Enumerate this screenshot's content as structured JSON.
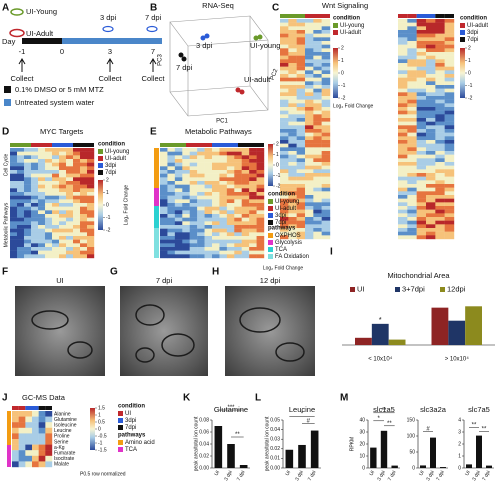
{
  "panel_labels": [
    "A",
    "B",
    "C",
    "D",
    "E",
    "F",
    "G",
    "H",
    "I",
    "J",
    "K",
    "L",
    "M"
  ],
  "a": {
    "groups": [
      "UI-Young",
      "UI-Adult",
      "3 dpi",
      "7 dpi"
    ],
    "day_label": "Day",
    "days": [
      -1,
      0,
      3,
      7
    ],
    "collect": [
      "Collect",
      "Collect",
      "Collect"
    ],
    "legend": [
      "0.1% DMSO or 5 mM MTZ",
      "Untreated system water"
    ]
  },
  "b": {
    "title": "RNA-Seq",
    "point_labels": [
      "3 dpi",
      "UI-young",
      "7 dpi",
      "UI-adult"
    ],
    "axes": [
      "PC1",
      "PC2",
      "PC3"
    ]
  },
  "c": {
    "title": "Wnt Signaling",
    "legend_title": "condition",
    "legend_1": [
      "UI-young",
      "UI-adult"
    ],
    "legend_2": [
      "UI-adult",
      "3dpi",
      "7dpi"
    ],
    "colorbar_ticks": [
      2,
      1,
      0,
      -1,
      -2
    ],
    "colorbar_label": "Log₂ Fold Change"
  },
  "d": {
    "title": "MYC Targets",
    "row_groups": [
      "Cell Cycle",
      "Metabolic Pathways"
    ],
    "legend_title": "condition",
    "conditions": [
      "UI-young",
      "UI-adult",
      "3dpi",
      "7dpi"
    ],
    "colorbar_ticks": [
      2,
      1,
      0,
      -1,
      -2
    ],
    "colorbar_label": "Log₂ Fold Change"
  },
  "e": {
    "title": "Metabolic Pathways",
    "legend_title": "condition",
    "conditions": [
      "UI-young",
      "UI-adult",
      "3dpi",
      "7dpi"
    ],
    "pathways_title": "pathways",
    "pathways": [
      "OXPHOS",
      "Glycolysis",
      "TCA",
      "FA Oxidation"
    ],
    "colorbar_ticks": [
      2,
      1,
      0,
      -1,
      -2
    ],
    "colorbar_label": "Log₂ Fold Change"
  },
  "fgh": {
    "titles": [
      "UI",
      "7 dpi",
      "12 dpi"
    ]
  },
  "j": {
    "title": "GC-MS Data",
    "rows": [
      "Alanine",
      "Glutamine",
      "Isoleucine",
      "Leucine",
      "Proline",
      "Serine",
      "a-Kg",
      "Fumarate",
      "Isocitrate",
      "Malate"
    ],
    "colorbar_ticks": [
      1.5,
      1,
      0.5,
      0,
      -0.5,
      -1,
      -1.5
    ],
    "note": "P0.5 row normalized",
    "legend_title": "condition",
    "conditions": [
      "UI",
      "3dpi",
      "7dpi"
    ],
    "pathways_title": "pathways",
    "pathways": [
      "Amino acid",
      "TCA"
    ]
  },
  "chart_data": [
    {
      "type": "bar",
      "title": "Mitochondrial Area",
      "categories": [
        "< 10x10⁴",
        "> 10x10⁴"
      ],
      "series": [
        {
          "name": "UI",
          "color": "#8e2424",
          "values": [
            16,
            83
          ]
        },
        {
          "name": "3+7dpi",
          "color": "#1f3566",
          "values": [
            47,
            54
          ]
        },
        {
          "name": "12dpi",
          "color": "#8c8a1e",
          "values": [
            12,
            86
          ]
        }
      ],
      "ylim": [
        0,
        100
      ],
      "annotations": [
        "*"
      ]
    },
    {
      "type": "bar",
      "title": "Glutamine",
      "y_label": "peak area/total ion count",
      "categories": [
        "UI",
        "3 dpi",
        "7 dpi"
      ],
      "values": [
        0.07,
        0.04,
        0.005
      ],
      "color": "#111111",
      "ylim": [
        0,
        0.08
      ],
      "yticks": [
        {
          "value": 0,
          "label": "0.00"
        },
        {
          "value": 0.02,
          "label": "0.02"
        },
        {
          "value": 0.04,
          "label": "0.04"
        },
        {
          "value": 0.06,
          "label": "0.06"
        },
        {
          "value": 0.08,
          "label": "0.08"
        }
      ],
      "annotations": [
        "***",
        "**"
      ]
    },
    {
      "type": "bar",
      "title": "Leucine",
      "y_label": "peak area/total ion count",
      "categories": [
        "UI",
        "3 dpi",
        "7 dpi"
      ],
      "values": [
        0.019,
        0.024,
        0.039
      ],
      "color": "#111111",
      "ylim": [
        0,
        0.05
      ],
      "yticks": [
        {
          "value": 0,
          "label": "0.00"
        },
        {
          "value": 0.01,
          "label": "0.01"
        },
        {
          "value": 0.02,
          "label": "0.02"
        },
        {
          "value": 0.03,
          "label": "0.03"
        },
        {
          "value": 0.04,
          "label": "0.04"
        },
        {
          "value": 0.05,
          "label": "0.05"
        }
      ],
      "annotations": [
        "#",
        "*"
      ]
    },
    {
      "type": "bar",
      "title": "slc1a5",
      "y_label": "RPKM",
      "categories": [
        "UI",
        "3 dpi",
        "7 dpi"
      ],
      "values": [
        17,
        31,
        2
      ],
      "color": "#111111",
      "ylim": [
        0,
        40
      ],
      "yticks": [
        0,
        10,
        20,
        30,
        40
      ],
      "annotations": [
        "*",
        "**",
        "**"
      ]
    },
    {
      "type": "bar",
      "title": "slc3a2a",
      "categories": [
        "UI",
        "3 dpi",
        "7 dpi"
      ],
      "values": [
        8,
        95,
        3
      ],
      "color": "#111111",
      "ylim": [
        0,
        150
      ],
      "yticks": [
        0,
        50,
        100,
        150
      ],
      "annotations": [
        "#"
      ]
    },
    {
      "type": "bar",
      "title": "slc7a5",
      "categories": [
        "UI",
        "3 dpi",
        "7 dpi"
      ],
      "values": [
        0.3,
        2.7,
        0.2
      ],
      "color": "#111111",
      "ylim": [
        0,
        4
      ],
      "yticks": [
        0,
        1,
        2,
        3,
        4
      ],
      "annotations": [
        "**",
        "**"
      ]
    }
  ]
}
